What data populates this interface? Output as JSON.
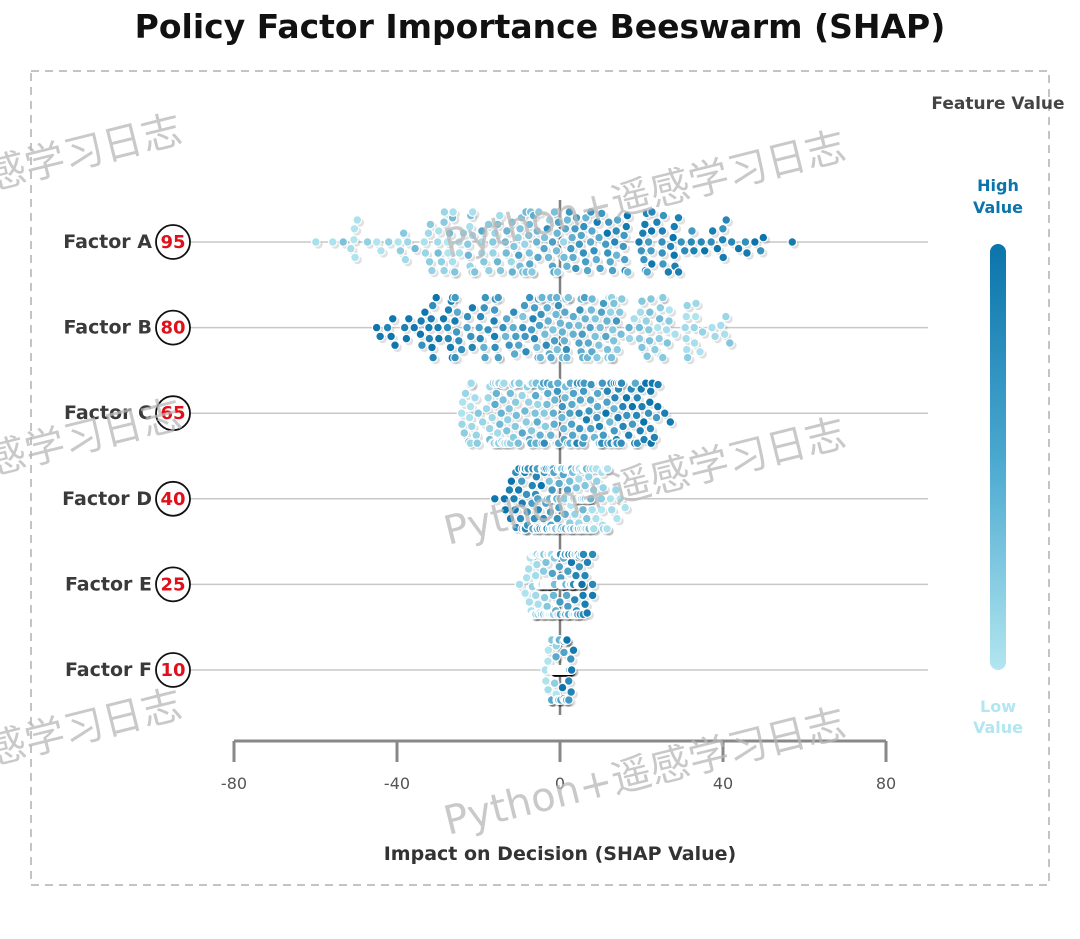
{
  "chart_data": {
    "type": "beeswarm",
    "title": "Policy Factor Importance Beeswarm (SHAP)",
    "xlabel": "Impact on Decision (SHAP Value)",
    "xlim": [
      -80,
      80
    ],
    "xticks": [
      -80,
      -40,
      0,
      40,
      80
    ],
    "grid": false,
    "legend": {
      "title": "Feature Value",
      "high_label_line1": "High",
      "high_label_line2": "Value",
      "low_label_line1": "Low",
      "low_label_line2": "Value",
      "high_color": "#0b74ab",
      "low_color": "#b2e6f0",
      "placement": "right"
    },
    "factors": [
      {
        "name": "Factor A",
        "importance": 95,
        "shap_min": -60,
        "shap_max": 57,
        "spread": 60,
        "direction": "positive"
      },
      {
        "name": "Factor B",
        "importance": 80,
        "shap_min": -45,
        "shap_max": 50,
        "spread": 50,
        "direction": "negative"
      },
      {
        "name": "Factor C",
        "importance": 65,
        "shap_min": -32,
        "shap_max": 30,
        "spread": 32,
        "direction": "positive"
      },
      {
        "name": "Factor D",
        "importance": 40,
        "shap_min": -16,
        "shap_max": 16,
        "spread": 16,
        "direction": "negative"
      },
      {
        "name": "Factor E",
        "importance": 25,
        "shap_min": -10,
        "shap_max": 8,
        "spread": 9,
        "direction": "positive"
      },
      {
        "name": "Factor F",
        "importance": 10,
        "shap_min": -4,
        "shap_max": 4,
        "spread": 3.5,
        "direction": "positive"
      }
    ],
    "points_per_factor": 200
  },
  "colors": {
    "score_text": "#e0101a",
    "row_line": "#c8c8c8",
    "zero_line": "#808080",
    "axis": "#888888",
    "frame": "#c4c4c4"
  },
  "watermarks": [
    "感学习日志",
    "Python+遥感学习日志",
    "感学习日志",
    "Python+遥感学习日志",
    "感学习日志",
    "Python+遥感学习日志"
  ]
}
